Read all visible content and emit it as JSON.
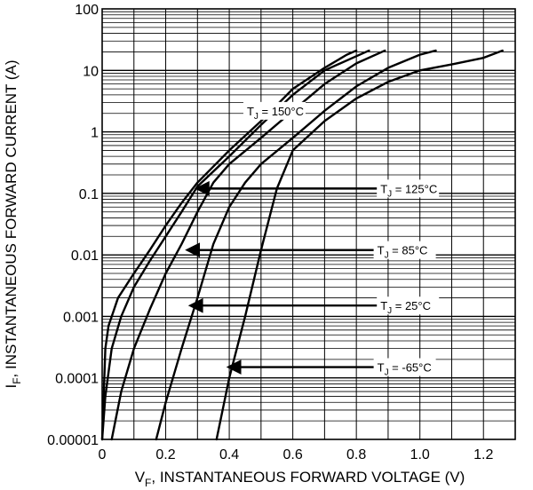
{
  "chart_data": {
    "type": "line",
    "xlabel": {
      "main": "V",
      "sub": "F",
      "rest": ", INSTANTANEOUS FORWARD VOLTAGE (V)"
    },
    "ylabel": {
      "main": "I",
      "sub": "F",
      "rest": ", INSTANTANEOUS FORWARD CURRENT (A)"
    },
    "xlim": [
      0,
      1.3
    ],
    "ylim": [
      1e-05,
      100
    ],
    "y_scale": "log",
    "grid": true,
    "x_ticks": [
      {
        "value": 0,
        "label": "0"
      },
      {
        "value": 0.2,
        "label": "0.2"
      },
      {
        "value": 0.4,
        "label": "0.4"
      },
      {
        "value": 0.6,
        "label": "0.6"
      },
      {
        "value": 0.8,
        "label": "0.8"
      },
      {
        "value": 1.0,
        "label": "1.0"
      },
      {
        "value": 1.2,
        "label": "1.2"
      }
    ],
    "y_ticks": [
      {
        "value": 100,
        "label": "100"
      },
      {
        "value": 10,
        "label": "10"
      },
      {
        "value": 1,
        "label": "1"
      },
      {
        "value": 0.1,
        "label": "0.1"
      },
      {
        "value": 0.01,
        "label": "0.01"
      },
      {
        "value": 0.001,
        "label": "0.001"
      },
      {
        "value": 0.0001,
        "label": "0.0001"
      },
      {
        "value": 1e-05,
        "label": "0.00001"
      }
    ],
    "series": [
      {
        "name": "T_J = 150°C",
        "label_main": "T",
        "label_sub": "J",
        "label_rest": " = 150°C",
        "points": [
          [
            0.0,
            1e-05
          ],
          [
            0.01,
            0.0003
          ],
          [
            0.02,
            0.0007
          ],
          [
            0.05,
            0.002
          ],
          [
            0.1,
            0.005
          ],
          [
            0.15,
            0.012
          ],
          [
            0.2,
            0.03
          ],
          [
            0.25,
            0.07
          ],
          [
            0.3,
            0.15
          ],
          [
            0.4,
            0.5
          ],
          [
            0.5,
            1.5
          ],
          [
            0.6,
            5
          ],
          [
            0.7,
            11
          ],
          [
            0.77,
            18
          ],
          [
            0.8,
            21
          ]
        ]
      },
      {
        "name": "T_J = 125°C",
        "label_main": "T",
        "label_sub": "J",
        "label_rest": " = 125°C",
        "points": [
          [
            0.0,
            1e-05
          ],
          [
            0.01,
            5e-05
          ],
          [
            0.03,
            0.0003
          ],
          [
            0.06,
            0.001
          ],
          [
            0.1,
            0.003
          ],
          [
            0.15,
            0.008
          ],
          [
            0.2,
            0.02
          ],
          [
            0.25,
            0.05
          ],
          [
            0.3,
            0.13
          ],
          [
            0.4,
            0.4
          ],
          [
            0.5,
            1.3
          ],
          [
            0.6,
            4
          ],
          [
            0.7,
            10
          ],
          [
            0.8,
            17
          ],
          [
            0.84,
            21
          ]
        ]
      },
      {
        "name": "T_J = 85°C",
        "label_main": "T",
        "label_sub": "J",
        "label_rest": " = 85°C",
        "points": [
          [
            0.03,
            1e-05
          ],
          [
            0.06,
            6e-05
          ],
          [
            0.1,
            0.0003
          ],
          [
            0.15,
            0.0013
          ],
          [
            0.2,
            0.005
          ],
          [
            0.25,
            0.015
          ],
          [
            0.3,
            0.05
          ],
          [
            0.35,
            0.15
          ],
          [
            0.4,
            0.3
          ],
          [
            0.5,
            0.8
          ],
          [
            0.6,
            2.2
          ],
          [
            0.7,
            6
          ],
          [
            0.8,
            13
          ],
          [
            0.89,
            21
          ]
        ]
      },
      {
        "name": "T_J = 25°C",
        "label_main": "T",
        "label_sub": "J",
        "label_rest": " = 25°C",
        "points": [
          [
            0.17,
            1e-05
          ],
          [
            0.2,
            4e-05
          ],
          [
            0.25,
            0.0003
          ],
          [
            0.3,
            0.002
          ],
          [
            0.35,
            0.015
          ],
          [
            0.4,
            0.06
          ],
          [
            0.45,
            0.15
          ],
          [
            0.5,
            0.3
          ],
          [
            0.6,
            0.8
          ],
          [
            0.7,
            2.2
          ],
          [
            0.8,
            5.5
          ],
          [
            0.9,
            11
          ],
          [
            1.0,
            18
          ],
          [
            1.05,
            21
          ]
        ]
      },
      {
        "name": "T_J = -65°C",
        "label_main": "T",
        "label_sub": "J",
        "label_rest": " = -65°C",
        "points": [
          [
            0.36,
            1e-05
          ],
          [
            0.4,
            0.0001
          ],
          [
            0.45,
            0.001
          ],
          [
            0.5,
            0.012
          ],
          [
            0.55,
            0.12
          ],
          [
            0.6,
            0.5
          ],
          [
            0.7,
            1.5
          ],
          [
            0.8,
            3.5
          ],
          [
            0.9,
            6.5
          ],
          [
            1.0,
            10
          ],
          [
            1.1,
            12.5
          ],
          [
            1.2,
            16
          ],
          [
            1.26,
            21
          ]
        ]
      }
    ],
    "annotations": [
      {
        "series": 0,
        "arrow": false,
        "at": [
          0.45,
          2.2
        ]
      },
      {
        "series": 1,
        "arrow": true,
        "text_at": [
          0.87,
          0.12
        ],
        "tip": [
          0.3,
          0.12
        ]
      },
      {
        "series": 2,
        "arrow": true,
        "text_at": [
          0.86,
          0.012
        ],
        "tip": [
          0.27,
          0.012
        ]
      },
      {
        "series": 3,
        "arrow": true,
        "text_at": [
          0.87,
          0.0015
        ],
        "tip": [
          0.28,
          0.0015
        ]
      },
      {
        "series": 4,
        "arrow": true,
        "text_at": [
          0.86,
          0.00015
        ],
        "tip": [
          0.4,
          0.00015
        ]
      }
    ]
  }
}
